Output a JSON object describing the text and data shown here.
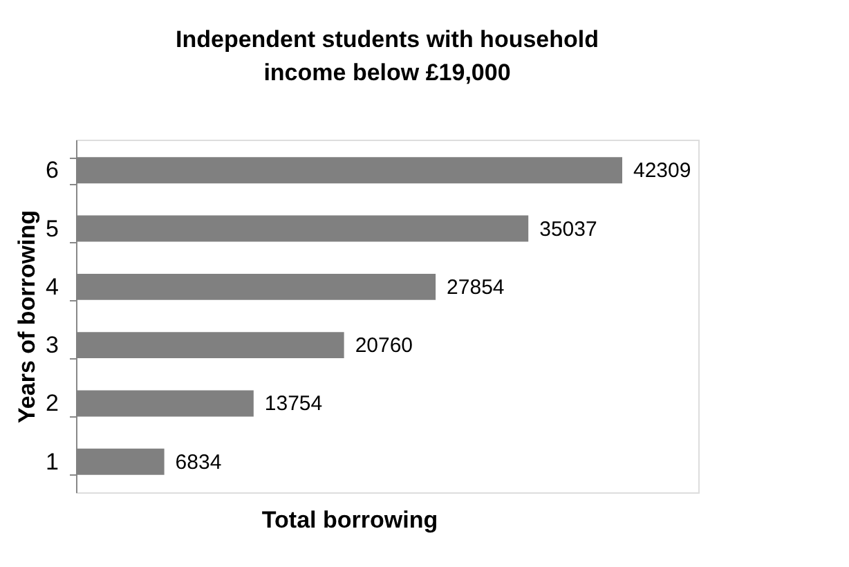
{
  "chart_data": {
    "type": "bar",
    "orientation": "horizontal",
    "title": "Independent students with household income below £19,000",
    "xlabel": "Total borrowing",
    "ylabel": "Years of borrowing",
    "categories": [
      "6",
      "5",
      "4",
      "3",
      "2",
      "1"
    ],
    "values": [
      42309,
      35037,
      27854,
      20760,
      13754,
      6834
    ],
    "color": "#808080",
    "data_labels": true,
    "grid": false,
    "tick_labels": "y"
  }
}
